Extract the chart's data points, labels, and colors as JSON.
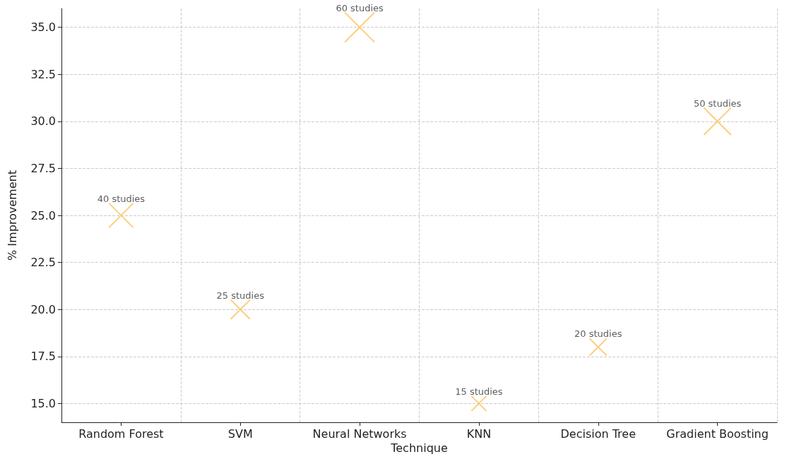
{
  "chart_data": {
    "type": "bubble",
    "xlabel": "Technique",
    "ylabel": "% Improvement",
    "categories": [
      "Random Forest",
      "SVM",
      "Neural Networks",
      "KNN",
      "Decision Tree",
      "Gradient Boosting"
    ],
    "values": [
      25,
      20,
      35,
      15,
      18,
      30
    ],
    "sizes": [
      0.667,
      0.417,
      1,
      0.25,
      0.333,
      0.833
    ],
    "annotations": [
      {
        "text": "40 studies",
        "x": "Random Forest",
        "y": 25
      },
      {
        "text": "25 studies",
        "x": "SVM",
        "y": 20
      },
      {
        "text": "60 studies",
        "x": "Neural Networks",
        "y": 35
      },
      {
        "text": "15 studies",
        "x": "KNN",
        "y": 15
      },
      {
        "text": "20 studies",
        "x": "Decision Tree",
        "y": 18
      },
      {
        "text": "50 studies",
        "x": "Gradient Boosting",
        "y": 30
      }
    ],
    "color": "#fbc96e",
    "marker": "cross",
    "ylim": [
      14,
      36
    ],
    "yticks": [
      {
        "value": 15,
        "label": "15.0"
      },
      17.5,
      {
        "value": 20,
        "label": "20.0"
      },
      22.5,
      {
        "value": 25,
        "label": "25.0"
      },
      27.5,
      {
        "value": 30,
        "label": "30.0"
      },
      32.5,
      {
        "value": 35,
        "label": "35.0"
      }
    ],
    "grid": true
  }
}
